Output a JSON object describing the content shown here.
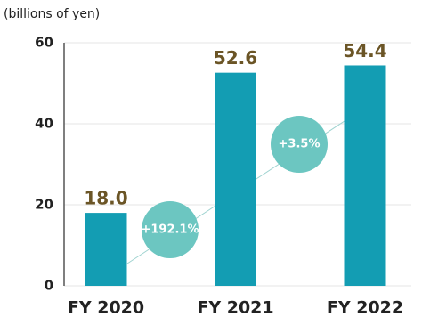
{
  "chart_data": {
    "type": "bar",
    "y_axis_label": "(billions of yen)",
    "categories": [
      "FY 2020",
      "FY 2021",
      "FY 2022"
    ],
    "values": [
      18.0,
      52.6,
      54.4
    ],
    "value_labels": [
      "18.0",
      "52.6",
      "54.4"
    ],
    "color": "#139db3",
    "ylim": [
      0,
      60
    ],
    "yticks": [
      0,
      20,
      40,
      60
    ],
    "grid": true,
    "annotations": [
      "+192.1%",
      "+3.5%"
    ]
  }
}
